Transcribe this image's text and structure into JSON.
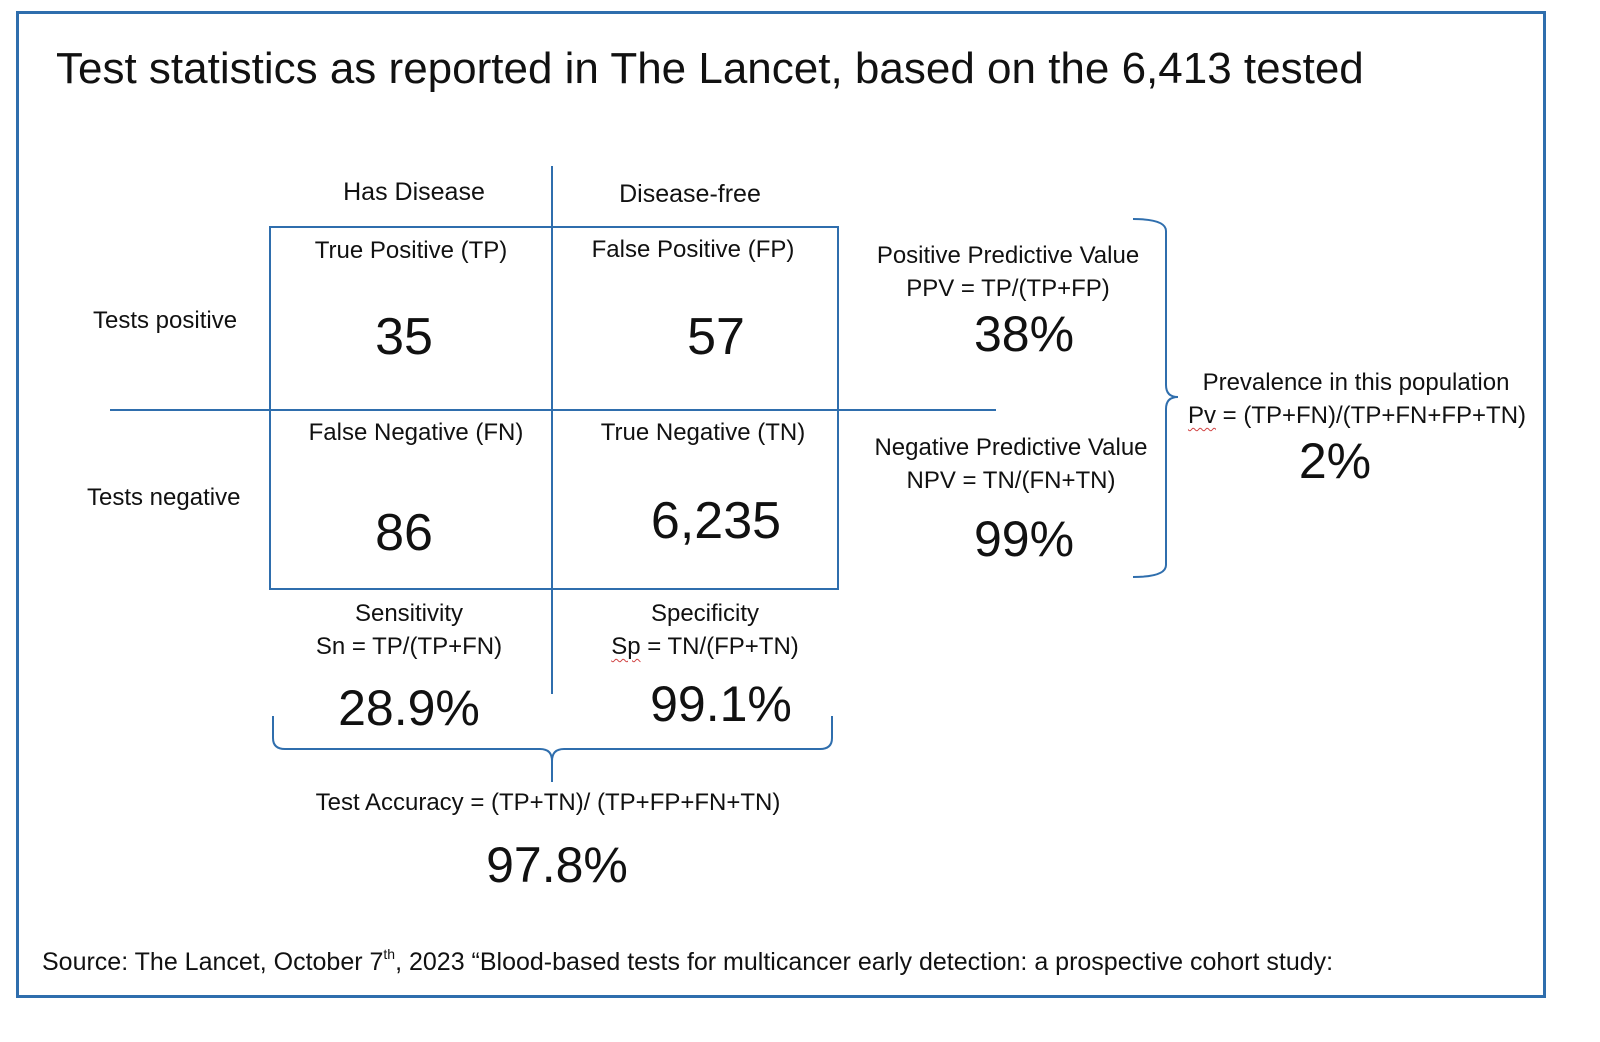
{
  "title": "Test statistics as reported in The Lancet, based on the 6,413 tested",
  "columns": {
    "has_disease": "Has Disease",
    "disease_free": "Disease-free"
  },
  "rows": {
    "tests_positive": "Tests positive",
    "tests_negative": "Tests negative"
  },
  "cells": {
    "tp": {
      "label": "True Positive (TP)",
      "value": "35"
    },
    "fp": {
      "label": "False Positive (FP)",
      "value": "57"
    },
    "fn": {
      "label": "False Negative (FN)",
      "value": "86"
    },
    "tn": {
      "label": "True Negative (TN)",
      "value": "6,235"
    }
  },
  "sensitivity": {
    "label": "Sensitivity",
    "formula": "Sn = TP/(TP+FN)",
    "value": "28.9%"
  },
  "specificity": {
    "label": "Specificity",
    "formula_abbr": "Sp",
    "formula_rest": " = TN/(FP+TN)",
    "value": "99.1%"
  },
  "ppv": {
    "label": "Positive Predictive Value",
    "formula": "PPV = TP/(TP+FP)",
    "value": "38%"
  },
  "npv": {
    "label": "Negative Predictive Value",
    "formula": "NPV = TN/(FN+TN)",
    "value": "99%"
  },
  "prevalence": {
    "label": "Prevalence in this population",
    "formula_abbr": "Pv",
    "formula_rest": " = (TP+FN)/(TP+FN+FP+TN)",
    "value": "2%"
  },
  "accuracy": {
    "label": "Test Accuracy = (TP+TN)/ (TP+FP+FN+TN)",
    "value": "97.8%"
  },
  "source": {
    "prefix": "Source: The Lancet, October 7",
    "sup": "th",
    "suffix": ", 2023 “Blood-based tests for multicancer early detection: a prospective cohort study:"
  },
  "colors": {
    "accent": "#2f6ead",
    "text": "#111111",
    "spellcheck": "#d04040"
  }
}
